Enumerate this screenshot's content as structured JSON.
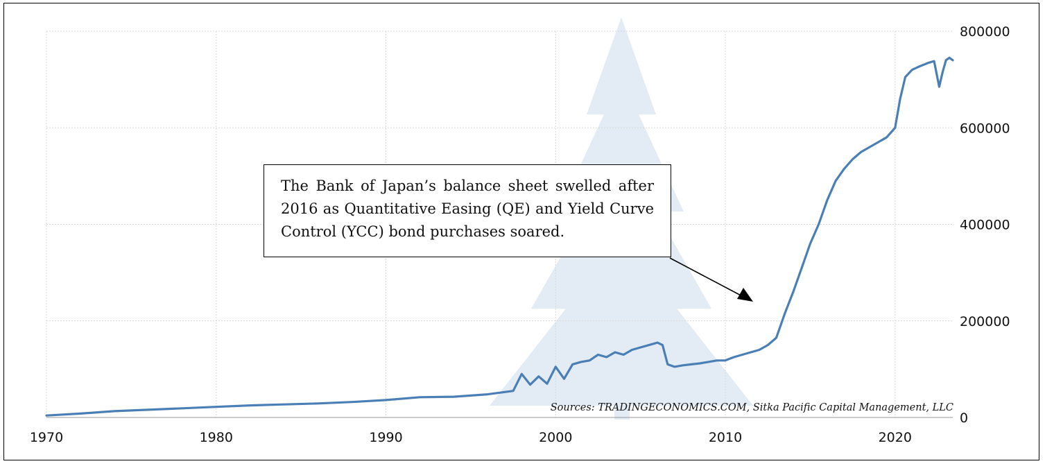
{
  "annotation": {
    "text": "The Bank of Japan’s balance sheet swelled after 2016 as Quantitative Easing (QE) and Yield Curve Control (YCC) bond purchases soared."
  },
  "source": "Sources: TRADINGECONOMICS.COM, Sitka Pacific Capital Management, LLC",
  "colors": {
    "line": "#4a7fb5",
    "grid": "#d9d9d9",
    "watermark": "#e3ecf4"
  },
  "chart_data": {
    "type": "line",
    "title": "",
    "xlabel": "",
    "ylabel": "",
    "xlim": [
      1970,
      2023.4
    ],
    "ylim": [
      0,
      800000
    ],
    "x_ticks": [
      "1970",
      "1980",
      "1990",
      "2000",
      "2010",
      "2020"
    ],
    "y_ticks": [
      "0",
      "200000",
      "400000",
      "600000",
      "800000"
    ],
    "y_axis_side": "right",
    "grid": true,
    "legend": "none",
    "series": [
      {
        "x": [
          1970,
          1972,
          1974,
          1976,
          1978,
          1980,
          1982,
          1984,
          1986,
          1988,
          1990,
          1992,
          1994,
          1996,
          1997.5,
          1998,
          1998.5,
          1999,
          1999.5,
          2000,
          2000.5,
          2001,
          2001.5,
          2002,
          2002.5,
          2003,
          2003.5,
          2004,
          2004.5,
          2005,
          2005.5,
          2006,
          2006.3,
          2006.6,
          2007,
          2007.5,
          2008,
          2008.5,
          2009,
          2009.5,
          2010,
          2010.5,
          2011,
          2011.5,
          2012,
          2012.5,
          2013,
          2013.5,
          2014,
          2014.5,
          2015,
          2015.5,
          2016,
          2016.5,
          2017,
          2017.5,
          2018,
          2018.5,
          2019,
          2019.5,
          2020,
          2020.3,
          2020.6,
          2021,
          2021.5,
          2022,
          2022.3,
          2022.6,
          2022.8,
          2023,
          2023.2,
          2023.4
        ],
        "values": [
          4000,
          8000,
          13000,
          16000,
          19000,
          22000,
          25000,
          27000,
          29000,
          32000,
          36000,
          42000,
          43000,
          48000,
          55000,
          90000,
          68000,
          85000,
          70000,
          105000,
          80000,
          110000,
          115000,
          118000,
          130000,
          125000,
          135000,
          130000,
          140000,
          145000,
          150000,
          155000,
          150000,
          110000,
          105000,
          108000,
          110000,
          112000,
          115000,
          118000,
          118000,
          125000,
          130000,
          135000,
          140000,
          150000,
          165000,
          215000,
          260000,
          310000,
          360000,
          400000,
          450000,
          490000,
          515000,
          535000,
          550000,
          560000,
          570000,
          580000,
          600000,
          660000,
          705000,
          720000,
          728000,
          735000,
          738000,
          685000,
          715000,
          740000,
          745000,
          740000
        ]
      }
    ]
  }
}
